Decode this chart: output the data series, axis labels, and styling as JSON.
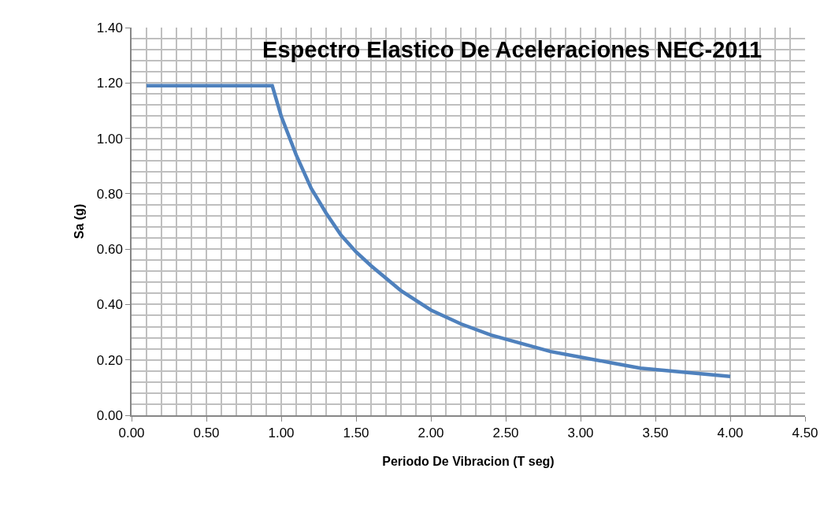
{
  "chart_data": {
    "type": "line",
    "title": "Espectro Elastico De Aceleraciones NEC-2011",
    "xlabel": "Periodo De Vibracion (T seg)",
    "ylabel": "Sa (g)",
    "x": [
      0.1,
      0.94,
      1.0,
      1.1,
      1.2,
      1.3,
      1.4,
      1.5,
      1.6,
      1.8,
      2.0,
      2.2,
      2.4,
      2.6,
      2.8,
      3.0,
      3.2,
      3.4,
      3.6,
      3.8,
      4.0
    ],
    "series": [
      {
        "color": "#4f81bd",
        "values": [
          1.19,
          1.19,
          1.08,
          0.94,
          0.82,
          0.73,
          0.65,
          0.59,
          0.54,
          0.45,
          0.38,
          0.33,
          0.29,
          0.26,
          0.23,
          0.21,
          0.19,
          0.17,
          0.16,
          0.15,
          0.14
        ]
      }
    ],
    "xlim": [
      0,
      4.5
    ],
    "xticks": [
      {
        "value": 0,
        "label": "0.00"
      },
      {
        "value": 0.5,
        "label": "0.50"
      },
      {
        "value": 1,
        "label": "1.00"
      },
      {
        "value": 1.5,
        "label": "1.50"
      },
      {
        "value": 2,
        "label": "2.00"
      },
      {
        "value": 2.5,
        "label": "2.50"
      },
      {
        "value": 3,
        "label": "3.00"
      },
      {
        "value": 3.5,
        "label": "3.50"
      },
      {
        "value": 4,
        "label": "4.00"
      },
      {
        "value": 4.5,
        "label": "4.50"
      }
    ],
    "ylim": [
      0,
      1.4
    ],
    "yticks": [
      {
        "value": 0,
        "label": "0.00"
      },
      {
        "value": 0.2,
        "label": "0.20"
      },
      {
        "value": 0.4,
        "label": "0.40"
      },
      {
        "value": 0.6,
        "label": "0.60"
      },
      {
        "value": 0.8,
        "label": "0.80"
      },
      {
        "value": 1,
        "label": "1.00"
      },
      {
        "value": 1.2,
        "label": "1.20"
      },
      {
        "value": 1.4,
        "label": "1.40"
      }
    ],
    "grid": true,
    "marker": "none",
    "line_style": "solid"
  }
}
